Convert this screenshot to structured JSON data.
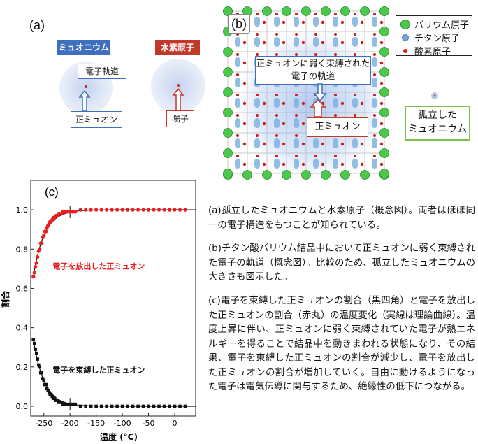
{
  "panel_a": {
    "label": "(a)",
    "muonium_title": "ミュオニウム",
    "hydrogen_title": "水素原子",
    "electron_orbit_label": "電子軌道",
    "positive_muon_label": "正ミュオン",
    "proton_label": "陽子",
    "colors": {
      "muonium_tag": "#3f6fbf",
      "hydrogen_tag": "#c0392b",
      "nucleus": "#d11c1c"
    }
  },
  "panel_b": {
    "label": "(b)",
    "legend": [
      {
        "label": "バリウム原子",
        "color": "#4cc94c"
      },
      {
        "label": "チタン原子",
        "color": "#6fa8dc"
      },
      {
        "label": "酸素原子",
        "color": "#d11c1c"
      }
    ],
    "orbit_label_line1": "正ミュオンに弱く束縛された",
    "orbit_label_line2": "電子の軌道",
    "muon_label": "正ミュオン",
    "isolated_line1": "孤立した",
    "isolated_line2": "ミュオニウム"
  },
  "panel_c": {
    "label": "(c)"
  },
  "chart_data": {
    "type": "scatter",
    "xlabel": "温度 (°C)",
    "ylabel": "割合",
    "xlim": [
      -275,
      40
    ],
    "ylim": [
      -0.05,
      1.15
    ],
    "xticks": [
      -250,
      -200,
      -150,
      -100,
      -50,
      0
    ],
    "yticks": [
      0.0,
      0.2,
      0.4,
      0.6,
      0.8,
      1.0
    ],
    "xtick_labels": [
      "-250",
      "-200",
      "-150",
      "-100",
      "-50",
      "0"
    ],
    "ytick_labels": [
      "0.0",
      "0.2",
      "0.4",
      "0.6",
      "0.8",
      "1.0"
    ],
    "series": [
      {
        "name": "電子を放出した正ミュオン",
        "marker": "circle",
        "color": "#ee1c1c",
        "x": [
          -270,
          -268,
          -266,
          -264,
          -262,
          -260,
          -258,
          -256,
          -254,
          -252,
          -250,
          -248,
          -246,
          -244,
          -242,
          -240,
          -238,
          -236,
          -234,
          -232,
          -230,
          -228,
          -226,
          -224,
          -222,
          -220,
          -218,
          -216,
          -214,
          -212,
          -210,
          -205,
          -200,
          -195,
          -190,
          -180,
          -170,
          -160,
          -150,
          -140,
          -130,
          -120,
          -110,
          -100,
          -90,
          -80,
          -70,
          -60,
          -50,
          -40,
          -30,
          -20,
          -10,
          0,
          10,
          20
        ],
        "y": [
          0.66,
          0.68,
          0.71,
          0.73,
          0.76,
          0.79,
          0.8,
          0.83,
          0.83,
          0.86,
          0.87,
          0.89,
          0.89,
          0.91,
          0.92,
          0.93,
          0.94,
          0.94,
          0.95,
          0.96,
          0.96,
          0.97,
          0.97,
          0.97,
          0.98,
          0.98,
          0.98,
          0.98,
          0.99,
          0.99,
          0.99,
          0.99,
          0.99,
          0.99,
          0.99,
          1.0,
          1.0,
          1.0,
          1.0,
          1.0,
          1.0,
          1.0,
          1.0,
          1.0,
          1.0,
          1.0,
          1.0,
          1.0,
          1.0,
          1.0,
          1.0,
          1.0,
          1.0,
          1.0,
          1.0,
          1.0
        ]
      },
      {
        "name": "電子を束縛した正ミュオン",
        "marker": "square",
        "color": "#111111",
        "x": [
          -270,
          -268,
          -266,
          -264,
          -262,
          -260,
          -258,
          -256,
          -254,
          -252,
          -250,
          -248,
          -246,
          -244,
          -242,
          -240,
          -238,
          -236,
          -234,
          -232,
          -230,
          -228,
          -226,
          -224,
          -222,
          -220,
          -218,
          -216,
          -214,
          -212,
          -210,
          -205,
          -200,
          -195,
          -190,
          -180,
          -170,
          -160,
          -150,
          -140,
          -130,
          -120,
          -110,
          -100,
          -90,
          -80,
          -70,
          -60,
          -50,
          -40,
          -30,
          -20,
          -10,
          0,
          10,
          20
        ],
        "y": [
          0.34,
          0.32,
          0.29,
          0.27,
          0.24,
          0.21,
          0.2,
          0.17,
          0.17,
          0.14,
          0.13,
          0.11,
          0.11,
          0.09,
          0.08,
          0.07,
          0.06,
          0.06,
          0.05,
          0.04,
          0.04,
          0.03,
          0.03,
          0.03,
          0.02,
          0.02,
          0.02,
          0.02,
          0.01,
          0.01,
          0.01,
          0.01,
          0.01,
          0.01,
          0.01,
          0.0,
          0.0,
          0.0,
          0.0,
          0.0,
          0.0,
          0.0,
          0.0,
          0.0,
          0.0,
          0.0,
          0.0,
          0.0,
          0.0,
          0.0,
          0.0,
          0.0,
          0.0,
          0.0,
          0.0,
          0.0
        ]
      }
    ],
    "annotations": [
      {
        "text": "電子を放出した正ミュオン",
        "x": -145,
        "y": 0.7,
        "color": "#ee1c1c"
      },
      {
        "text": "電子を束縛した正ミュオン",
        "x": -145,
        "y": 0.17,
        "color": "#111111"
      }
    ]
  },
  "descriptions": {
    "a": "(a)孤立したミュオニウムと水素原子（概念図）。両者はほぼ同一の電子構造をもつことが知られている。",
    "b": "(b)チタン酸バリウム結晶中において正ミュオンに弱く束縛された電子の軌道（概念図）。比較のため、孤立したミュオニウムの大きさも図示した。",
    "c": "(c)電子を束縛した正ミュオンの割合（黒四角）と電子を放出した正ミュオンの割合（赤丸）の温度変化（実線は理論曲線）。温度上昇に伴い、正ミュオンに弱く束縛されていた電子が熱エネルギーを得ることで結晶中を動きまわれる状態になり、その結果、電子を束縛した正ミュオンの割合が減少し、電子を放出した正ミュオンの割合が増加していく。自由に動けるようになった電子は電気伝導に関与するため、絶縁性の低下につながる。"
  }
}
